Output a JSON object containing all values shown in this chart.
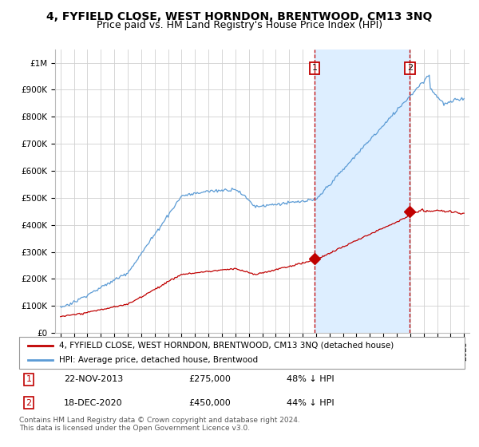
{
  "title": "4, FYFIELD CLOSE, WEST HORNDON, BRENTWOOD, CM13 3NQ",
  "subtitle": "Price paid vs. HM Land Registry's House Price Index (HPI)",
  "legend_line1": "4, FYFIELD CLOSE, WEST HORNDON, BRENTWOOD, CM13 3NQ (detached house)",
  "legend_line2": "HPI: Average price, detached house, Brentwood",
  "transaction1_date": "22-NOV-2013",
  "transaction1_price": "£275,000",
  "transaction1_pct": "48% ↓ HPI",
  "transaction2_date": "18-DEC-2020",
  "transaction2_price": "£450,000",
  "transaction2_pct": "44% ↓ HPI",
  "footer": "Contains HM Land Registry data © Crown copyright and database right 2024.\nThis data is licensed under the Open Government Licence v3.0.",
  "hpi_color": "#5b9bd5",
  "price_color": "#c00000",
  "vline_color": "#c00000",
  "marker_color": "#c00000",
  "grid_color": "#d0d0d0",
  "shade_color": "#ddeeff",
  "background_color": "#ffffff",
  "ylim": [
    0,
    1050000
  ],
  "yticks": [
    0,
    100000,
    200000,
    300000,
    400000,
    500000,
    600000,
    700000,
    800000,
    900000,
    1000000
  ],
  "ytick_labels": [
    "£0",
    "£100K",
    "£200K",
    "£300K",
    "£400K",
    "£500K",
    "£600K",
    "£700K",
    "£800K",
    "£900K",
    "£1M"
  ],
  "title_fontsize": 10,
  "subtitle_fontsize": 9,
  "transaction1_x": 2013.9,
  "transaction2_x": 2020.97,
  "xstart": 1995,
  "xend": 2025
}
